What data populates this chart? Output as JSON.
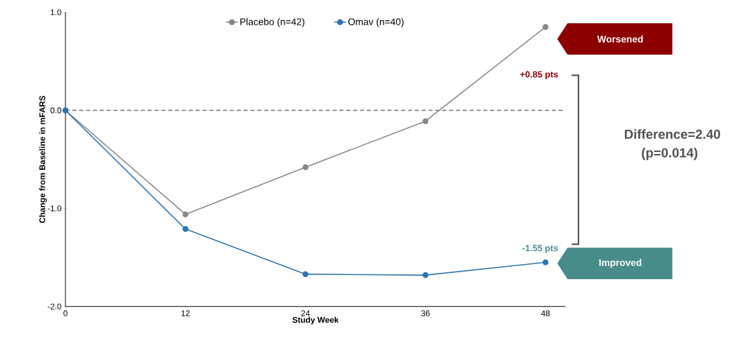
{
  "chart_data": {
    "type": "line",
    "xlabel": "Study Week",
    "ylabel": "Change from Baseline in mFARS",
    "x": [
      0,
      12,
      24,
      36,
      48
    ],
    "series": [
      {
        "name": "Placebo (n=42)",
        "color": "#878787",
        "values": [
          0,
          -1.06,
          -0.58,
          -0.11,
          0.85
        ]
      },
      {
        "name": "Omav (n=40)",
        "color": "#2e75b0",
        "values": [
          0,
          -1.21,
          -1.67,
          -1.68,
          -1.55
        ]
      }
    ],
    "xlim": [
      0,
      50
    ],
    "xticks": [
      0,
      12,
      24,
      36,
      48
    ],
    "ylim": [
      -2,
      1
    ],
    "yticks": [
      {
        "value": -2,
        "label": "-2.0"
      },
      {
        "value": -1,
        "label": "-1.0"
      },
      {
        "value": 0,
        "label": "0.0"
      },
      {
        "value": 1,
        "label": "1.0"
      }
    ],
    "ref_lines": [
      {
        "axis": "y",
        "value": 0,
        "color": "#707070",
        "line_style": "dashed"
      }
    ],
    "annotations": [
      "Worsened",
      "+0.85 pts",
      "Difference=2.40",
      "(p=0.014)",
      "-1.55 pts",
      "Improved"
    ],
    "legend": "top",
    "marker": "circle",
    "line_style": "solid",
    "grid": false
  }
}
